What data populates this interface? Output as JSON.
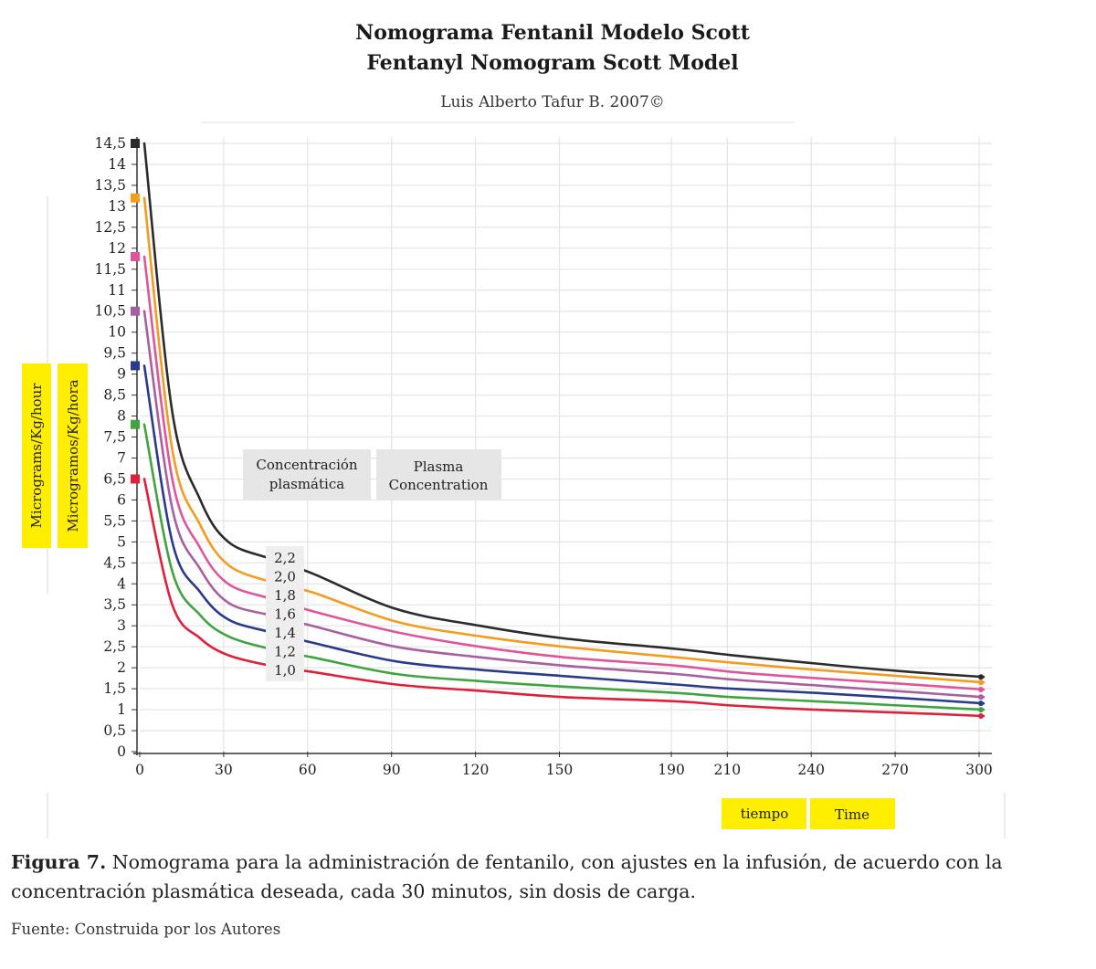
{
  "chart_data": {
    "type": "line",
    "title": "Nomograma Fentanil Modelo Scott",
    "subtitle": "Fentanyl Nomogram Scott Model",
    "author": "Luis Alberto Tafur B. 2007©",
    "ylabels": [
      "Micrograms/Kg/hour",
      "Microgramos/Kg/hora"
    ],
    "xlabels": [
      "tiempo",
      "Time"
    ],
    "legend_title": [
      "Concentración plasmática",
      "Plasma Concentration"
    ],
    "xlim": [
      0,
      300
    ],
    "ylim": [
      0,
      14.5
    ],
    "xticks": [
      0,
      30,
      60,
      90,
      120,
      150,
      190,
      210,
      240,
      270,
      300
    ],
    "yticks": [
      "0",
      "0,5",
      "1",
      "1,5",
      "2",
      "2,5",
      "3",
      "3,5",
      "4",
      "4,5",
      "5",
      "5,5",
      "6",
      "6,5",
      "7",
      "7,5",
      "8",
      "8,5",
      "9",
      "9,5",
      "10",
      "10,5",
      "11",
      "11,5",
      "12",
      "12,5",
      "13",
      "13,5",
      "14",
      "14,5"
    ],
    "grid": true,
    "series": [
      {
        "name": "2,2",
        "color": "#2b2b2b",
        "start": 14.5,
        "end": 1.78,
        "x": [
          0,
          10,
          20,
          30,
          45,
          60,
          90,
          120,
          150,
          190,
          210,
          240,
          270,
          300
        ],
        "y": [
          14.5,
          8.1,
          6.0,
          5.0,
          4.6,
          4.25,
          3.4,
          3.0,
          2.7,
          2.45,
          2.3,
          2.1,
          1.92,
          1.78
        ]
      },
      {
        "name": "2,0",
        "color": "#f39c1f",
        "start": 13.2,
        "end": 1.65,
        "x": [
          0,
          10,
          20,
          30,
          45,
          60,
          90,
          120,
          150,
          190,
          210,
          240,
          270,
          300
        ],
        "y": [
          13.2,
          7.2,
          5.4,
          4.45,
          4.05,
          3.8,
          3.1,
          2.75,
          2.5,
          2.25,
          2.12,
          1.95,
          1.8,
          1.65
        ]
      },
      {
        "name": "1,8",
        "color": "#e0559a",
        "start": 11.8,
        "end": 1.48,
        "x": [
          0,
          10,
          20,
          30,
          45,
          60,
          90,
          120,
          150,
          190,
          210,
          240,
          270,
          300
        ],
        "y": [
          11.8,
          6.5,
          4.85,
          4.0,
          3.65,
          3.35,
          2.85,
          2.5,
          2.25,
          2.05,
          1.9,
          1.75,
          1.62,
          1.48
        ]
      },
      {
        "name": "1,6",
        "color": "#a85fa0",
        "start": 10.5,
        "end": 1.3,
        "x": [
          0,
          10,
          20,
          30,
          45,
          60,
          90,
          120,
          150,
          190,
          210,
          240,
          270,
          300
        ],
        "y": [
          10.5,
          5.8,
          4.35,
          3.55,
          3.25,
          3.0,
          2.5,
          2.25,
          2.05,
          1.85,
          1.72,
          1.58,
          1.44,
          1.3
        ]
      },
      {
        "name": "1,4",
        "color": "#2a3a8c",
        "start": 9.2,
        "end": 1.15,
        "x": [
          0,
          10,
          20,
          30,
          45,
          60,
          90,
          120,
          150,
          190,
          210,
          240,
          270,
          300
        ],
        "y": [
          9.2,
          5.0,
          3.8,
          3.15,
          2.85,
          2.6,
          2.15,
          1.95,
          1.8,
          1.6,
          1.5,
          1.4,
          1.28,
          1.15
        ]
      },
      {
        "name": "1,2",
        "color": "#3fa33f",
        "start": 7.8,
        "end": 1.0,
        "x": [
          0,
          10,
          20,
          30,
          45,
          60,
          90,
          120,
          150,
          190,
          210,
          240,
          270,
          300
        ],
        "y": [
          7.8,
          4.3,
          3.25,
          2.75,
          2.45,
          2.25,
          1.85,
          1.68,
          1.55,
          1.4,
          1.3,
          1.2,
          1.1,
          1.0
        ]
      },
      {
        "name": "1,0",
        "color": "#e0203a",
        "start": 6.5,
        "end": 0.85,
        "x": [
          0,
          10,
          20,
          30,
          45,
          60,
          90,
          120,
          150,
          190,
          210,
          240,
          270,
          300
        ],
        "y": [
          6.5,
          3.5,
          2.7,
          2.3,
          2.05,
          1.9,
          1.6,
          1.45,
          1.3,
          1.2,
          1.1,
          1.0,
          0.93,
          0.85
        ]
      }
    ]
  },
  "caption": {
    "label": "Figura 7.",
    "text": " Nomograma para la administración de fentanilo, con ajustes en la infusión, de acuerdo con la concentración plasmática deseada, cada 30 minutos, sin dosis de carga."
  },
  "source": "Fuente: Construida por los Autores"
}
